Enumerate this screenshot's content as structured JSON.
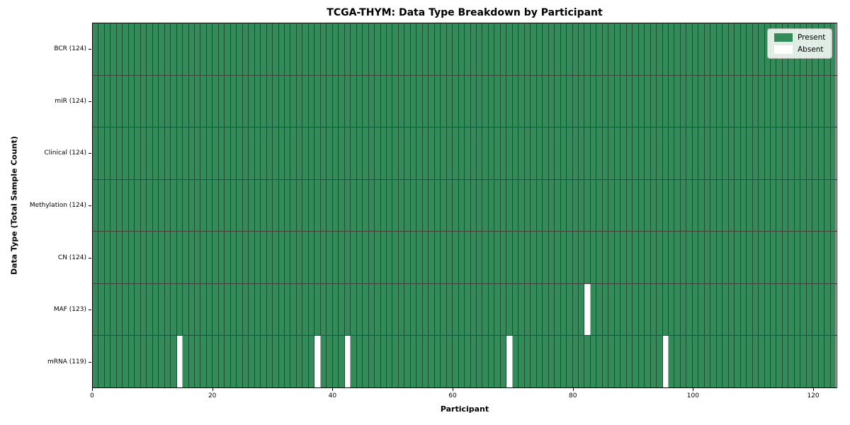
{
  "chart_data": {
    "type": "heatmap",
    "title": "TCGA-THYM: Data Type Breakdown by Participant",
    "xlabel": "Participant",
    "ylabel": "Data Type (Total Sample Count)",
    "n_participants": 124,
    "xlim": [
      0,
      124
    ],
    "x_ticks": [
      0,
      20,
      40,
      60,
      80,
      100,
      120
    ],
    "rows": [
      {
        "label": "BCR (124)",
        "present_count": 124,
        "absent_participants": []
      },
      {
        "label": "miR (124)",
        "present_count": 124,
        "absent_participants": []
      },
      {
        "label": "Clinical (124)",
        "present_count": 124,
        "absent_participants": []
      },
      {
        "label": "Methylation (124)",
        "present_count": 124,
        "absent_participants": []
      },
      {
        "label": "CN (124)",
        "present_count": 124,
        "absent_participants": []
      },
      {
        "label": "MAF (123)",
        "present_count": 123,
        "absent_participants": [
          82
        ]
      },
      {
        "label": "mRNA (119)",
        "present_count": 119,
        "absent_participants": [
          14,
          37,
          42,
          69,
          95
        ]
      }
    ],
    "legend": [
      {
        "label": "Present",
        "color": "#348a58"
      },
      {
        "label": "Absent",
        "color": "#ffffff"
      }
    ],
    "colors": {
      "present": "#348a58",
      "absent": "#ffffff"
    }
  }
}
